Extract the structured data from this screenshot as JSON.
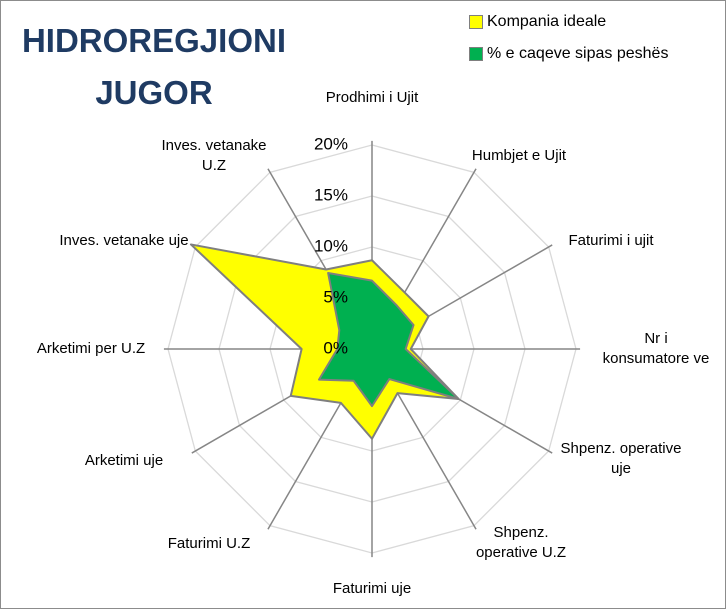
{
  "chart_data": {
    "type": "radar",
    "title": "HIDROREGJIONI JUGOR",
    "categories": [
      "Prodhimi i Ujit",
      "Humbjet e Ujit",
      "Faturimi i ujit",
      "Nr i konsumatore ve",
      "Shpenz. operative uje",
      "Shpenz. operative U.Z",
      "Faturimi uje",
      "Faturimi U.Z",
      "Arketimi uje",
      "Arketimi per U.Z",
      "Inves. vetanake uje",
      "Inves. vetanake U.Z"
    ],
    "series": [
      {
        "name": "Kompania ideale",
        "color": "#ffff00",
        "values": [
          8.7,
          6.4,
          6.4,
          3.8,
          9.8,
          5,
          8.8,
          6.1,
          9.2,
          6.9,
          20.5,
          9
        ]
      },
      {
        "name": "% e caqeve sipas peshës",
        "color": "#00b050",
        "values": [
          6.7,
          4.9,
          4.7,
          3.3,
          9.8,
          3.4,
          5.6,
          3.6,
          6,
          3.4,
          3.7,
          8.6
        ]
      }
    ],
    "ylim": [
      0,
      20
    ],
    "yticks": [
      {
        "value": 0,
        "label": "0%"
      },
      {
        "value": 5,
        "label": "5%"
      },
      {
        "value": 10,
        "label": "10%"
      },
      {
        "value": 15,
        "label": "15%"
      },
      {
        "value": 20,
        "label": "20%"
      }
    ],
    "grid": true,
    "legend": "top-right"
  }
}
